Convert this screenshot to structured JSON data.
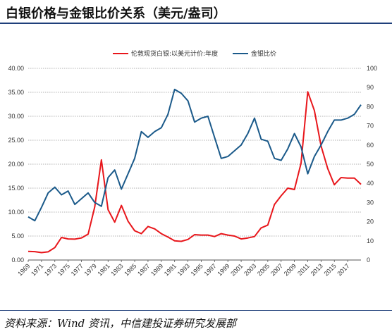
{
  "header": {
    "title": "白银价格与金银比价关系（美元/盎司）"
  },
  "footer": {
    "source": "资料来源：Wind 资讯，中信建投证券研究发展部"
  },
  "colors": {
    "silver": "#e8161b",
    "ratio": "#1b5a8a",
    "rule": "#1f3f7a"
  },
  "chart_data": {
    "type": "line",
    "title": "",
    "xlabel": "",
    "ylabel": "",
    "grid": "horizontal-dotted",
    "legend_position": "top",
    "x": [
      1969,
      1970,
      1971,
      1972,
      1973,
      1974,
      1975,
      1976,
      1977,
      1978,
      1979,
      1980,
      1981,
      1982,
      1983,
      1984,
      1985,
      1986,
      1987,
      1988,
      1989,
      1990,
      1991,
      1992,
      1993,
      1994,
      1995,
      1996,
      1997,
      1998,
      1999,
      2000,
      2001,
      2002,
      2003,
      2004,
      2005,
      2006,
      2007,
      2008,
      2009,
      2010,
      2011,
      2012,
      2013,
      2014,
      2015,
      2016,
      2017,
      2018,
      2019
    ],
    "x_tick_labels": [
      "1969",
      "1971",
      "1973",
      "1975",
      "1977",
      "1979",
      "1981",
      "1983",
      "1985",
      "1987",
      "1989",
      "1991",
      "1993",
      "1995",
      "1997",
      "1999",
      "2001",
      "2003",
      "2005",
      "2007",
      "2009",
      "2011",
      "2013",
      "2015",
      "2017"
    ],
    "y_left": {
      "range": [
        0,
        40
      ],
      "ticks": [
        "0.00",
        "5.00",
        "10.00",
        "15.00",
        "20.00",
        "25.00",
        "30.00",
        "35.00",
        "40.00"
      ]
    },
    "y_right": {
      "range": [
        0,
        100
      ],
      "ticks": [
        "0",
        "10",
        "20",
        "30",
        "40",
        "50",
        "60",
        "70",
        "80",
        "90",
        "100"
      ]
    },
    "series": [
      {
        "name": "伦敦现货白银:以美元计价:年度",
        "axis": "left",
        "color": "#e8161b",
        "values": [
          1.8,
          1.75,
          1.55,
          1.7,
          2.6,
          4.7,
          4.4,
          4.35,
          4.6,
          5.4,
          11.1,
          20.9,
          10.5,
          7.9,
          11.4,
          8.1,
          6.1,
          5.5,
          7.0,
          6.5,
          5.5,
          4.8,
          4.0,
          3.9,
          4.3,
          5.3,
          5.2,
          5.2,
          4.9,
          5.5,
          5.2,
          5.0,
          4.4,
          4.6,
          4.9,
          6.7,
          7.3,
          11.6,
          13.4,
          15.0,
          14.7,
          20.2,
          35.1,
          31.2,
          23.8,
          19.1,
          15.7,
          17.2,
          17.1,
          17.1,
          15.8
        ]
      },
      {
        "name": "金银比价",
        "axis": "right",
        "color": "#1b5a8a",
        "values": [
          22.5,
          20.5,
          27.5,
          35,
          38,
          34,
          36,
          29,
          32,
          35,
          30,
          28,
          43,
          47,
          37,
          45,
          53,
          67,
          64,
          67,
          69,
          76,
          89,
          87,
          83,
          72,
          74,
          75,
          64,
          53,
          54,
          57,
          60,
          66,
          74,
          63,
          62,
          53,
          52,
          58,
          66,
          59,
          45,
          54,
          60,
          67,
          73,
          73,
          74,
          76,
          81
        ]
      }
    ]
  }
}
